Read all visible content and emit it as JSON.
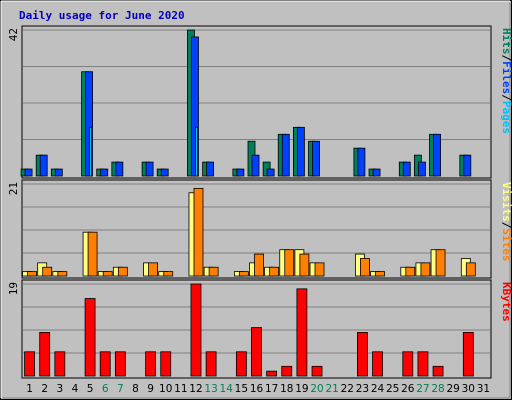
{
  "chart_data": {
    "type": "bar",
    "title": "Daily usage for June 2020",
    "categories": [
      "1",
      "2",
      "3",
      "4",
      "5",
      "6",
      "7",
      "8",
      "9",
      "10",
      "11",
      "12",
      "13",
      "14",
      "15",
      "16",
      "17",
      "18",
      "19",
      "20",
      "21",
      "22",
      "23",
      "24",
      "25",
      "26",
      "27",
      "28",
      "29",
      "30",
      "31"
    ],
    "weekend_days": [
      "6",
      "7",
      "13",
      "14",
      "20",
      "21",
      "27",
      "28"
    ],
    "panels": [
      {
        "ymax_label": "42",
        "ylim": [
          0,
          42
        ],
        "axis_title": [
          "Hits",
          "/",
          "Files",
          "/",
          "Pages"
        ],
        "series": [
          {
            "name": "Hits",
            "values": [
              2,
              6,
              2,
              0,
              30,
              2,
              4,
              0,
              4,
              2,
              0,
              42,
              4,
              0,
              2,
              10,
              4,
              12,
              14,
              10,
              0,
              0,
              8,
              2,
              0,
              4,
              6,
              12,
              0,
              6,
              0
            ]
          },
          {
            "name": "Files",
            "values": [
              2,
              6,
              2,
              0,
              30,
              2,
              4,
              0,
              4,
              2,
              0,
              40,
              4,
              0,
              2,
              6,
              2,
              12,
              14,
              10,
              0,
              0,
              8,
              2,
              0,
              4,
              4,
              12,
              0,
              6,
              0
            ]
          },
          {
            "name": "Pages",
            "values": [
              0,
              0,
              0,
              0,
              14,
              0,
              0,
              0,
              0,
              0,
              0,
              14,
              0,
              0,
              0,
              0,
              0,
              0,
              0,
              0,
              0,
              0,
              0,
              0,
              0,
              0,
              0,
              0,
              0,
              0,
              0
            ]
          }
        ]
      },
      {
        "ymax_label": "21",
        "ylim": [
          0,
          21
        ],
        "axis_title": [
          "Visits",
          "/",
          "Sites"
        ],
        "series": [
          {
            "name": "Visits",
            "values": [
              1,
              3,
              1,
              0,
              10,
              1,
              2,
              0,
              3,
              1,
              0,
              19,
              2,
              0,
              1,
              3,
              2,
              6,
              6,
              3,
              0,
              0,
              5,
              1,
              0,
              2,
              3,
              6,
              0,
              4,
              0
            ]
          },
          {
            "name": "Sites",
            "values": [
              1,
              2,
              1,
              0,
              10,
              1,
              2,
              0,
              3,
              1,
              0,
              20,
              2,
              0,
              1,
              5,
              2,
              6,
              5,
              3,
              0,
              0,
              4,
              1,
              0,
              2,
              3,
              6,
              0,
              3,
              0
            ]
          }
        ]
      },
      {
        "ymax_label": "19",
        "ylim": [
          0,
          19
        ],
        "axis_title": [
          "KBytes"
        ],
        "series": [
          {
            "name": "KBytes",
            "values": [
              5,
              9,
              5,
              0,
              16,
              5,
              5,
              0,
              5,
              5,
              0,
              19,
              5,
              0,
              5,
              10,
              1,
              2,
              18,
              2,
              0,
              0,
              9,
              5,
              0,
              5,
              5,
              2,
              0,
              9,
              0
            ]
          }
        ]
      }
    ],
    "colors": {
      "background": "#c0c0c0",
      "plot": "#c0c0c0",
      "grid": "#808080",
      "title": "#0000c0",
      "hits": "#00805c",
      "files": "#0040ff",
      "pages": "#00c0ff",
      "visits": "#ffff80",
      "sites": "#ff8000",
      "kbytes": "#ff0000",
      "day_label": "#000000",
      "weekend_label": "#00805c"
    }
  }
}
